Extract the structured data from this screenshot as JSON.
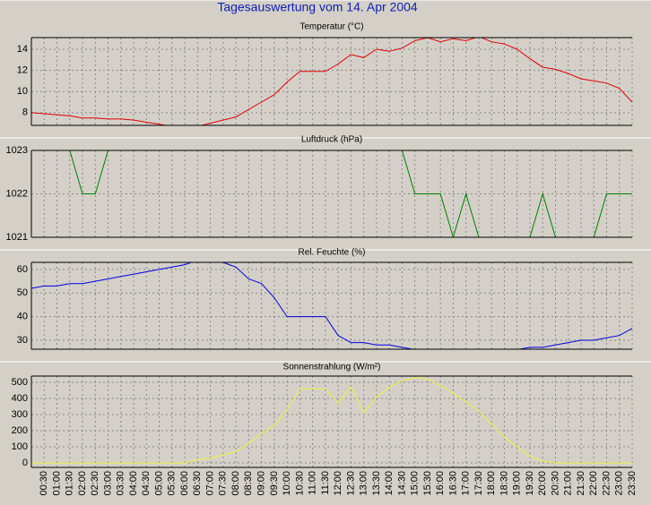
{
  "title": "Tagesauswertung vom 14. Apr 2004",
  "chart_data": [
    {
      "type": "line",
      "title": "Temperatur (°C)",
      "color": "#e00000",
      "values": [
        8.0,
        7.9,
        7.8,
        7.7,
        7.5,
        7.5,
        7.4,
        7.4,
        7.3,
        7.1,
        6.9,
        6.7,
        6.6,
        6.7,
        7.0,
        7.3,
        7.6,
        8.3,
        9.0,
        9.7,
        10.9,
        11.9,
        11.9,
        11.9,
        12.6,
        13.5,
        13.2,
        14.0,
        13.8,
        14.1,
        14.8,
        15.1,
        14.7,
        15.0,
        14.8,
        15.2,
        14.7,
        14.5,
        14.0,
        13.1,
        12.3,
        12.1,
        11.7,
        11.2,
        11.0,
        10.8,
        10.3,
        9.0
      ],
      "ylim": [
        6.8,
        15.1
      ],
      "yticks": [
        8,
        10,
        12,
        14
      ],
      "grid": true
    },
    {
      "type": "line",
      "title": "Luftdruck (hPa)",
      "color": "#008000",
      "values": [
        1023,
        1023,
        1023,
        1023,
        1022,
        1022,
        1023,
        1023,
        1023,
        1023,
        1023,
        1023,
        1023,
        1023,
        1023,
        1023,
        1023,
        1023,
        1023,
        1023,
        1023,
        1023,
        1023,
        1023,
        1023,
        1023,
        1023,
        1023,
        1023,
        1023,
        1022,
        1022,
        1022,
        1021,
        1022,
        1021,
        1021,
        1021,
        1021,
        1021,
        1022,
        1021,
        1021,
        1021,
        1021,
        1022,
        1022,
        1022
      ],
      "ylim": [
        1021,
        1023
      ],
      "yticks": [
        1021,
        1022,
        1023
      ],
      "grid": true
    },
    {
      "type": "line",
      "title": "Rel. Feuchte (%)",
      "color": "#0000e0",
      "values": [
        52,
        53,
        53,
        54,
        54,
        55,
        56,
        57,
        58,
        59,
        60,
        61,
        62,
        64,
        63,
        63,
        61,
        56,
        54,
        48,
        40,
        40,
        40,
        40,
        32,
        29,
        29,
        28,
        28,
        27,
        26,
        26,
        26,
        26,
        26,
        26,
        25,
        26,
        26,
        27,
        27,
        28,
        29,
        30,
        30,
        31,
        32,
        35
      ],
      "ylim": [
        26.2,
        63
      ],
      "yticks": [
        30,
        40,
        50,
        60
      ],
      "grid": true
    },
    {
      "type": "line",
      "title": "Sonnenstrahlung (W/m²)",
      "color": "#f0f040",
      "categories": [
        null,
        "00:30",
        "01:00",
        "01:30",
        "02:00",
        "02:30",
        "03:00",
        "03:30",
        "04:00",
        "04:30",
        "05:00",
        "05:30",
        "06:00",
        "06:30",
        "07:00",
        "07:30",
        "08:00",
        "08:30",
        "09:00",
        "09:30",
        "10:00",
        "10:30",
        "11:00",
        "11:30",
        "12:00",
        "12:30",
        "13:00",
        "13:30",
        "14:00",
        "14:30",
        "15:00",
        "15:30",
        "16:00",
        "16:30",
        "17:00",
        "17:30",
        "18:00",
        "18:30",
        "19:00",
        "19:30",
        "20:00",
        "20:30",
        "21:00",
        "21:30",
        "22:00",
        "22:30",
        "23:00",
        "23:30"
      ],
      "values": [
        0,
        0,
        0,
        0,
        0,
        0,
        0,
        0,
        0,
        0,
        0,
        0,
        0,
        20,
        30,
        50,
        70,
        120,
        180,
        230,
        330,
        460,
        460,
        460,
        370,
        470,
        310,
        410,
        470,
        510,
        530,
        520,
        480,
        430,
        380,
        320,
        240,
        160,
        100,
        40,
        10,
        0,
        0,
        0,
        0,
        0,
        0,
        0
      ],
      "ylim": [
        -28,
        539
      ],
      "yticks": [
        0,
        100,
        200,
        300,
        400,
        500
      ],
      "grid": true
    }
  ]
}
